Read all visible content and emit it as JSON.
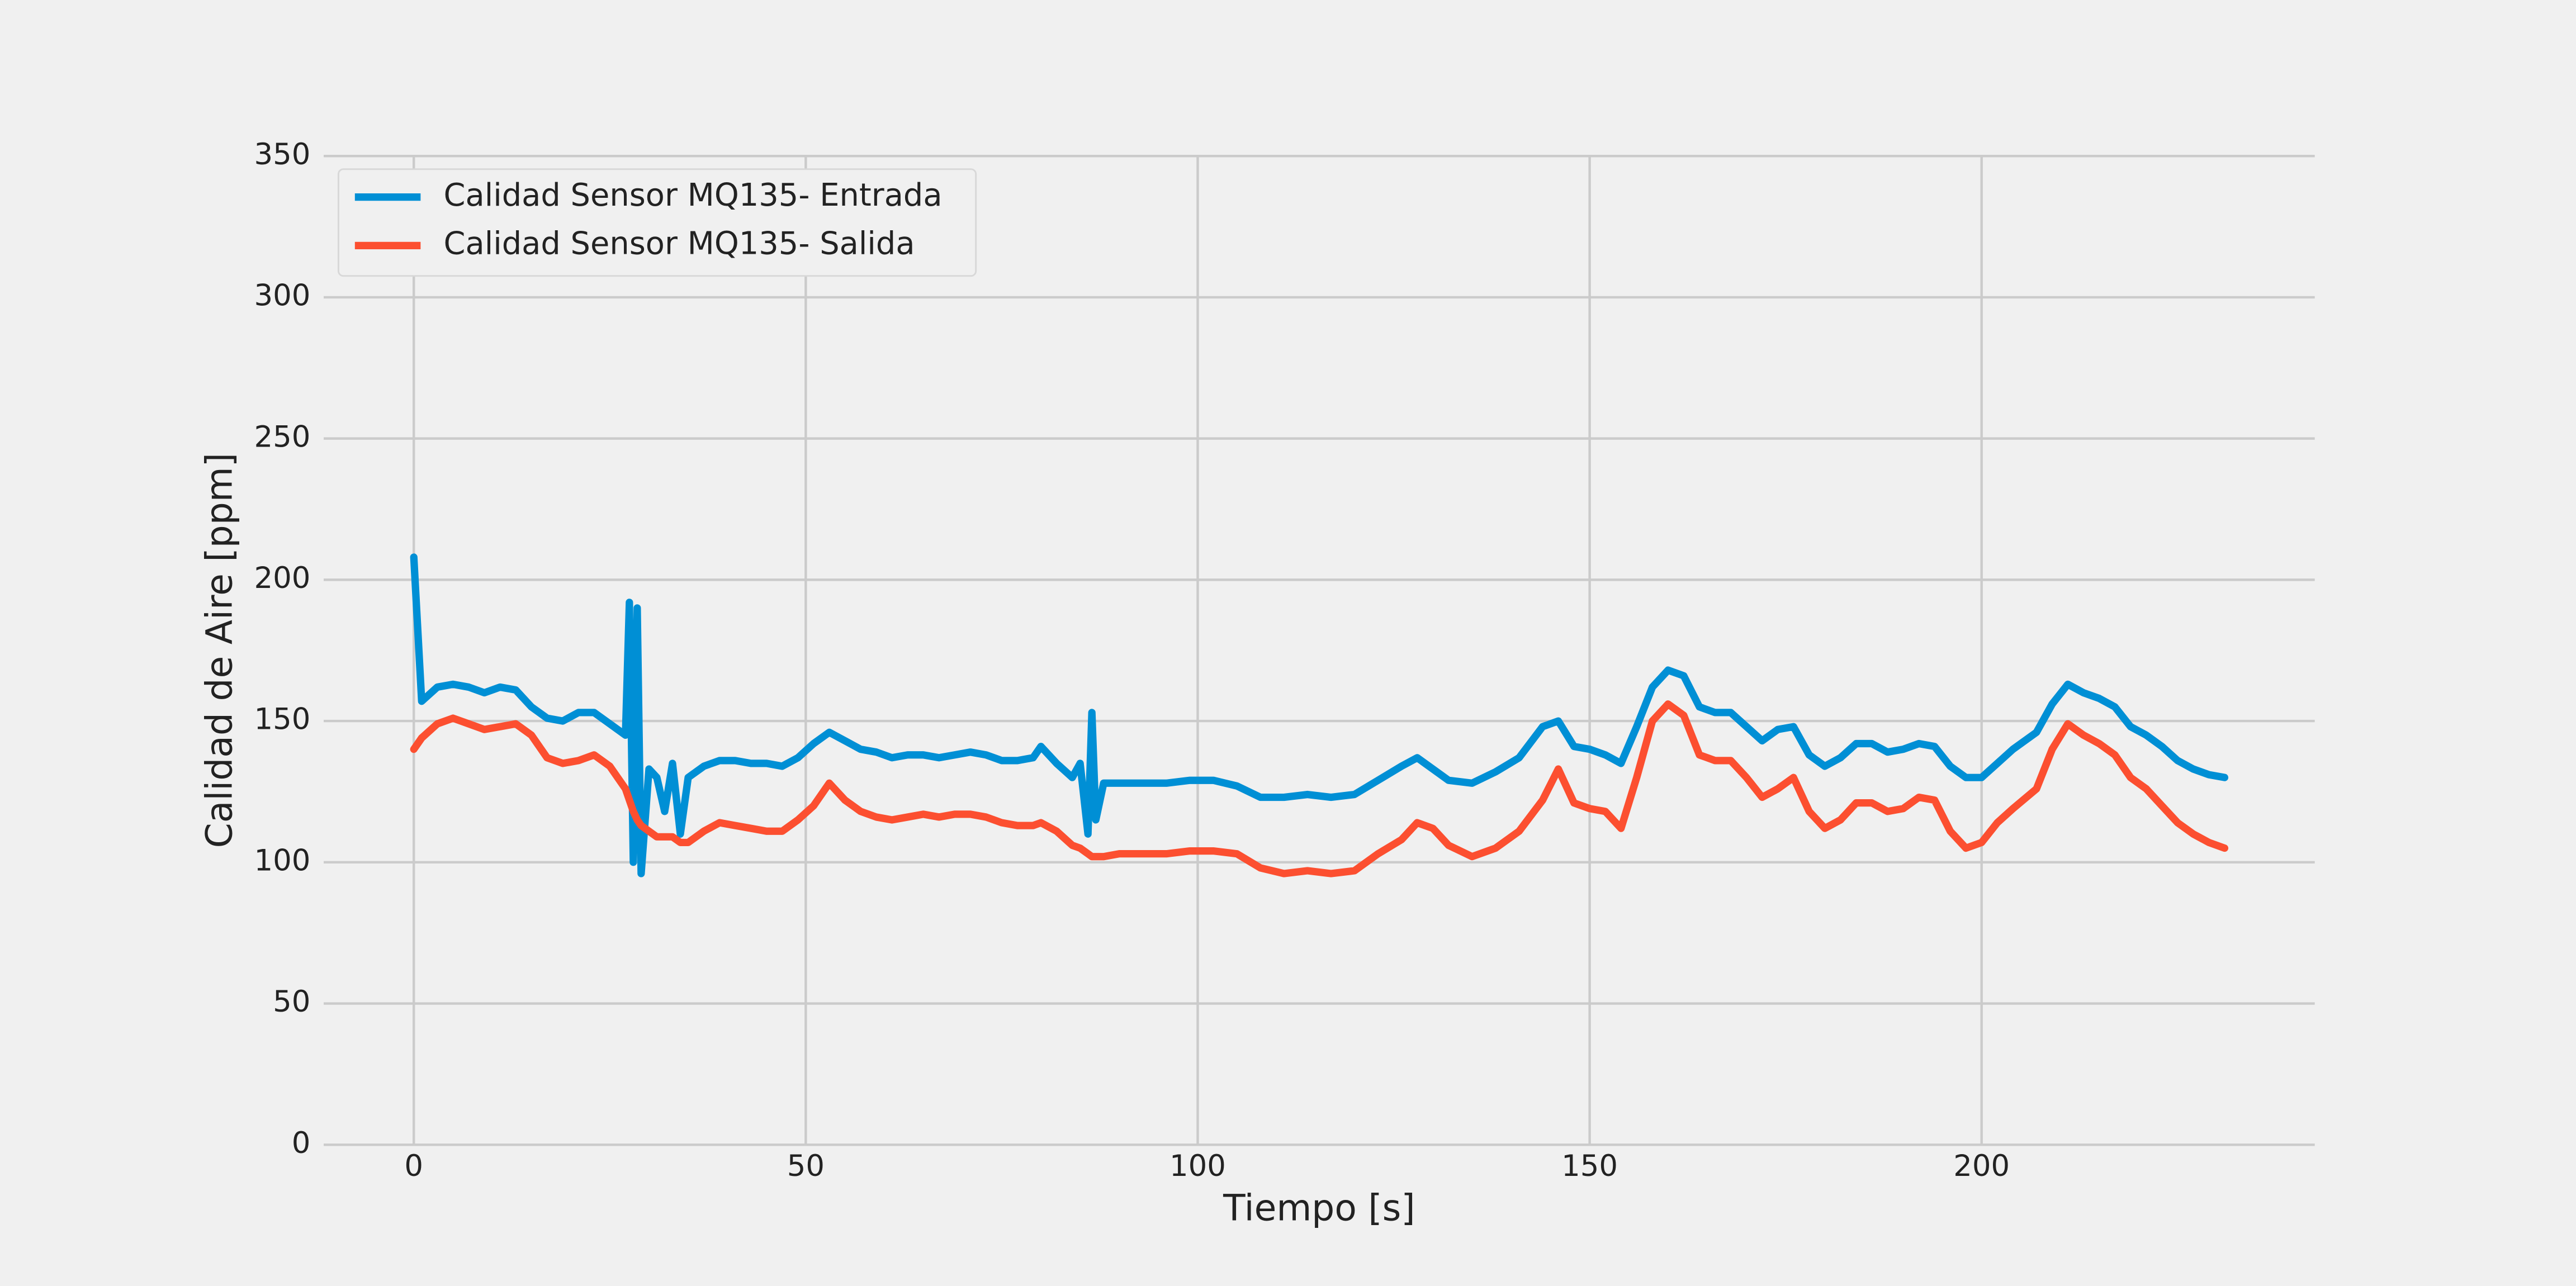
{
  "chart_data": {
    "type": "line",
    "xlabel": "Tiempo [s]",
    "ylabel": "Calidad de Aire [ppm]",
    "x": [
      0,
      1,
      3,
      5,
      7,
      9,
      11,
      13,
      15,
      17,
      19,
      21,
      23,
      25,
      27,
      27.5,
      28,
      28.5,
      29,
      30,
      31,
      32,
      33,
      34,
      35,
      37,
      39,
      41,
      43,
      45,
      47,
      49,
      51,
      53,
      55,
      57,
      59,
      61,
      63,
      65,
      67,
      69,
      71,
      73,
      75,
      77,
      79,
      80,
      82,
      84,
      85,
      86,
      86.5,
      87,
      88,
      90,
      93,
      96,
      99,
      102,
      105,
      108,
      111,
      114,
      117,
      120,
      123,
      126,
      128,
      130,
      132,
      135,
      138,
      141,
      144,
      146,
      148,
      150,
      152,
      154,
      156,
      158,
      160,
      162,
      164,
      166,
      168,
      170,
      172,
      174,
      176,
      178,
      180,
      182,
      184,
      186,
      188,
      190,
      192,
      194,
      196,
      198,
      200,
      202,
      204,
      207,
      209,
      211,
      213,
      215,
      217,
      219,
      221,
      223,
      225,
      227,
      229,
      231
    ],
    "series": [
      {
        "name": "Calidad Sensor MQ135- Entrada",
        "color": "#008fd5",
        "values": [
          208,
          157,
          162,
          163,
          162,
          160,
          162,
          161,
          155,
          151,
          150,
          153,
          153,
          149,
          145,
          192,
          100,
          190,
          96,
          133,
          130,
          118,
          135,
          110,
          130,
          134,
          136,
          136,
          135,
          135,
          134,
          137,
          142,
          146,
          143,
          140,
          139,
          137,
          138,
          138,
          137,
          138,
          139,
          138,
          136,
          136,
          137,
          141,
          135,
          130,
          135,
          110,
          153,
          115,
          128,
          128,
          128,
          128,
          129,
          129,
          127,
          123,
          123,
          124,
          123,
          124,
          129,
          134,
          137,
          133,
          129,
          128,
          132,
          137,
          148,
          150,
          141,
          140,
          138,
          135,
          148,
          162,
          168,
          166,
          155,
          153,
          153,
          148,
          143,
          147,
          148,
          138,
          134,
          137,
          142,
          142,
          139,
          140,
          142,
          141,
          134,
          130,
          130,
          135,
          140,
          146,
          156,
          163,
          160,
          158,
          155,
          148,
          145,
          141,
          136,
          133,
          131,
          130
        ]
      },
      {
        "name": "Calidad Sensor MQ135- Salida",
        "color": "#fc4f30",
        "values": [
          140,
          144,
          149,
          151,
          149,
          147,
          148,
          149,
          145,
          137,
          135,
          136,
          138,
          134,
          126,
          122,
          118,
          115,
          113,
          111,
          109,
          109,
          109,
          107,
          107,
          111,
          114,
          113,
          112,
          111,
          111,
          115,
          120,
          128,
          122,
          118,
          116,
          115,
          116,
          117,
          116,
          117,
          117,
          116,
          114,
          113,
          113,
          114,
          111,
          106,
          105,
          103,
          102,
          102,
          102,
          103,
          103,
          103,
          104,
          104,
          103,
          98,
          96,
          97,
          96,
          97,
          103,
          108,
          114,
          112,
          106,
          102,
          105,
          111,
          122,
          133,
          121,
          119,
          118,
          112,
          130,
          150,
          156,
          152,
          138,
          136,
          136,
          130,
          123,
          126,
          130,
          118,
          112,
          115,
          121,
          121,
          118,
          119,
          123,
          122,
          111,
          105,
          107,
          114,
          119,
          126,
          140,
          149,
          145,
          142,
          138,
          130,
          126,
          120,
          114,
          110,
          107,
          105
        ]
      }
    ],
    "xlim": [
      -11.5,
      242.5
    ],
    "ylim": [
      0,
      350
    ],
    "xticks": [
      0,
      50,
      100,
      150,
      200
    ],
    "yticks": [
      0,
      50,
      100,
      150,
      200,
      250,
      300,
      350
    ],
    "grid": true,
    "legend": "upper-left"
  }
}
